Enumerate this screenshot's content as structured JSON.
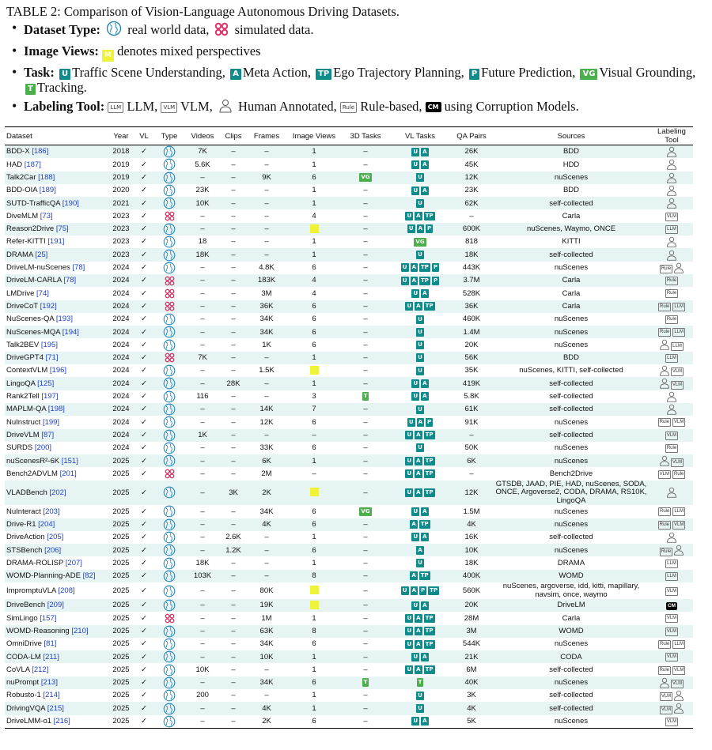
{
  "caption": "TABLE 2: Comparison of Vision-Language Autonomous Driving Datasets.",
  "legend": {
    "dataset_type": {
      "label": "Dataset Type:",
      "real": "real world data,",
      "sim": "simulated data."
    },
    "image_views": {
      "label": "Image Views:",
      "mixed_badge": "M",
      "text": "denotes mixed perspectives"
    },
    "task": {
      "label": "Task:",
      "items": [
        {
          "badge": "U",
          "text": "Traffic Scene Understanding,"
        },
        {
          "badge": "A",
          "text": "Meta Action,"
        },
        {
          "badge": "TP",
          "text": "Ego Trajectory Planning,"
        },
        {
          "badge": "P",
          "text": "Future Prediction,"
        },
        {
          "badge": "VG",
          "text": "Visual Grounding,"
        },
        {
          "badge": "T",
          "text": "Tracking."
        }
      ]
    },
    "labeling": {
      "label": "Labeling Tool:",
      "llm_badge": "LLM",
      "llm": "LLM,",
      "vlm_badge": "VLM",
      "vlm": "VLM,",
      "human": "Human Annotated,",
      "rule_badge": "Rule",
      "rule": "Rule-based,",
      "cm_badge": "CM",
      "cm": "using Corruption Models."
    }
  },
  "columns": [
    "Dataset",
    "Year",
    "VL",
    "Type",
    "Videos",
    "Clips",
    "Frames",
    "Image Views",
    "3D Tasks",
    "VL Tasks",
    "QA Pairs",
    "Sources",
    "Labeling Tool"
  ],
  "rows": [
    {
      "name": "BDD-X",
      "ref": "[186]",
      "year": "2018",
      "vl": "✓",
      "type": "real",
      "videos": "7K",
      "clips": "–",
      "frames": "–",
      "views": "1",
      "task3d": [],
      "vl_tasks": [
        "U",
        "A"
      ],
      "qa": "26K",
      "sources": "BDD",
      "tools": [
        "human"
      ]
    },
    {
      "name": "HAD",
      "ref": "[187]",
      "year": "2019",
      "vl": "✓",
      "type": "real",
      "videos": "5.6K",
      "clips": "–",
      "frames": "–",
      "views": "1",
      "task3d": [],
      "vl_tasks": [
        "U",
        "A"
      ],
      "qa": "45K",
      "sources": "HDD",
      "tools": [
        "human"
      ]
    },
    {
      "name": "Talk2Car",
      "ref": "[188]",
      "year": "2019",
      "vl": "✓",
      "type": "real",
      "videos": "–",
      "clips": "–",
      "frames": "9K",
      "views": "6",
      "task3d": [
        "VG"
      ],
      "vl_tasks": [
        "U"
      ],
      "qa": "12K",
      "sources": "nuScenes",
      "tools": [
        "human"
      ]
    },
    {
      "name": "BDD-OIA",
      "ref": "[189]",
      "year": "2020",
      "vl": "✓",
      "type": "real",
      "videos": "23K",
      "clips": "–",
      "frames": "–",
      "views": "1",
      "task3d": [],
      "vl_tasks": [
        "U",
        "A"
      ],
      "qa": "23K",
      "sources": "BDD",
      "tools": [
        "human"
      ]
    },
    {
      "name": "SUTD-TrafficQA",
      "ref": "[190]",
      "year": "2021",
      "vl": "✓",
      "type": "real",
      "videos": "10K",
      "clips": "–",
      "frames": "–",
      "views": "1",
      "task3d": [],
      "vl_tasks": [
        "U"
      ],
      "qa": "62K",
      "sources": "self-collected",
      "tools": [
        "human"
      ]
    },
    {
      "name": "DiveMLM",
      "ref": "[73]",
      "year": "2023",
      "vl": "✓",
      "type": "sim",
      "videos": "–",
      "clips": "–",
      "frames": "–",
      "views": "4",
      "task3d": [],
      "vl_tasks": [
        "U",
        "A",
        "TP"
      ],
      "qa": "–",
      "sources": "Carla",
      "tools": [
        "VLM"
      ]
    },
    {
      "name": "Reason2Drive",
      "ref": "[75]",
      "year": "2023",
      "vl": "✓",
      "type": "real",
      "videos": "–",
      "clips": "–",
      "frames": "–",
      "views": "M",
      "task3d": [],
      "vl_tasks": [
        "U",
        "A",
        "P"
      ],
      "qa": "600K",
      "sources": "nuScenes, Waymo, ONCE",
      "tools": [
        "LLM"
      ]
    },
    {
      "name": "Refer-KITTI",
      "ref": "[191]",
      "year": "2023",
      "vl": "✓",
      "type": "real",
      "videos": "18",
      "clips": "–",
      "frames": "–",
      "views": "1",
      "task3d": [],
      "vl_tasks": [
        "VG"
      ],
      "qa": "818",
      "sources": "KITTI",
      "tools": [
        "human"
      ]
    },
    {
      "name": "DRAMA",
      "ref": "[25]",
      "year": "2023",
      "vl": "✓",
      "type": "real",
      "videos": "18K",
      "clips": "–",
      "frames": "–",
      "views": "1",
      "task3d": [],
      "vl_tasks": [
        "U"
      ],
      "qa": "18K",
      "sources": "self-collected",
      "tools": [
        "human"
      ]
    },
    {
      "name": "DriveLM-nuScenes",
      "ref": "[78]",
      "year": "2024",
      "vl": "✓",
      "type": "real",
      "videos": "–",
      "clips": "–",
      "frames": "4.8K",
      "views": "6",
      "task3d": [],
      "vl_tasks": [
        "U",
        "A",
        "TP",
        "P"
      ],
      "qa": "443K",
      "sources": "nuScenes",
      "tools": [
        "Rule",
        "human"
      ]
    },
    {
      "name": "DriveLM-CARLA",
      "ref": "[78]",
      "year": "2024",
      "vl": "✓",
      "type": "sim",
      "videos": "–",
      "clips": "–",
      "frames": "183K",
      "views": "4",
      "task3d": [],
      "vl_tasks": [
        "U",
        "A",
        "TP",
        "P"
      ],
      "qa": "3.7M",
      "sources": "Carla",
      "tools": [
        "Rule"
      ]
    },
    {
      "name": "LMDrive",
      "ref": "[74]",
      "year": "2024",
      "vl": "✓",
      "type": "sim",
      "videos": "–",
      "clips": "–",
      "frames": "3M",
      "views": "4",
      "task3d": [],
      "vl_tasks": [
        "U",
        "A"
      ],
      "qa": "528K",
      "sources": "Carla",
      "tools": [
        "Rule"
      ]
    },
    {
      "name": "DriveCoT",
      "ref": "[192]",
      "year": "2024",
      "vl": "✓",
      "type": "sim",
      "videos": "–",
      "clips": "–",
      "frames": "36K",
      "views": "6",
      "task3d": [],
      "vl_tasks": [
        "U",
        "A",
        "TP"
      ],
      "qa": "36K",
      "sources": "Carla",
      "tools": [
        "Rule",
        "LLM"
      ]
    },
    {
      "name": "NuScenes-QA",
      "ref": "[193]",
      "year": "2024",
      "vl": "✓",
      "type": "real",
      "videos": "–",
      "clips": "–",
      "frames": "34K",
      "views": "6",
      "task3d": [],
      "vl_tasks": [
        "U"
      ],
      "qa": "460K",
      "sources": "nuScenes",
      "tools": [
        "Rule"
      ]
    },
    {
      "name": "NuScenes-MQA",
      "ref": "[194]",
      "year": "2024",
      "vl": "✓",
      "type": "real",
      "videos": "–",
      "clips": "–",
      "frames": "34K",
      "views": "6",
      "task3d": [],
      "vl_tasks": [
        "U"
      ],
      "qa": "1.4M",
      "sources": "nuScenes",
      "tools": [
        "Rule",
        "LLM"
      ]
    },
    {
      "name": "Talk2BEV",
      "ref": "[195]",
      "year": "2024",
      "vl": "✓",
      "type": "real",
      "videos": "–",
      "clips": "–",
      "frames": "1K",
      "views": "6",
      "task3d": [],
      "vl_tasks": [
        "U"
      ],
      "qa": "20K",
      "sources": "nuScenes",
      "tools": [
        "human",
        "LLM"
      ]
    },
    {
      "name": "DriveGPT4",
      "ref": "[71]",
      "year": "2024",
      "vl": "✓",
      "type": "sim",
      "videos": "7K",
      "clips": "–",
      "frames": "–",
      "views": "1",
      "task3d": [],
      "vl_tasks": [
        "U"
      ],
      "qa": "56K",
      "sources": "BDD",
      "tools": [
        "LLM"
      ]
    },
    {
      "name": "ContextVLM",
      "ref": "[196]",
      "year": "2024",
      "vl": "✓",
      "type": "real",
      "videos": "–",
      "clips": "–",
      "frames": "1.5K",
      "views": "M",
      "task3d": [],
      "vl_tasks": [
        "U"
      ],
      "qa": "35K",
      "sources": "nuScenes, KITTI, self-collected",
      "tools": [
        "human",
        "VLM"
      ]
    },
    {
      "name": "LingoQA",
      "ref": "[125]",
      "year": "2024",
      "vl": "✓",
      "type": "real",
      "videos": "–",
      "clips": "28K",
      "frames": "–",
      "views": "1",
      "task3d": [],
      "vl_tasks": [
        "U",
        "A"
      ],
      "qa": "419K",
      "sources": "self-collected",
      "tools": [
        "human",
        "VLM"
      ]
    },
    {
      "name": "Rank2Tell",
      "ref": "[197]",
      "year": "2024",
      "vl": "✓",
      "type": "real",
      "videos": "116",
      "clips": "–",
      "frames": "–",
      "views": "3",
      "task3d": [
        "T"
      ],
      "vl_tasks": [
        "U",
        "A"
      ],
      "qa": "5.8K",
      "sources": "self-collected",
      "tools": [
        "human"
      ]
    },
    {
      "name": "MAPLM-QA",
      "ref": "[198]",
      "year": "2024",
      "vl": "✓",
      "type": "real",
      "videos": "–",
      "clips": "–",
      "frames": "14K",
      "views": "7",
      "task3d": [],
      "vl_tasks": [
        "U"
      ],
      "qa": "61K",
      "sources": "self-collected",
      "tools": [
        "human"
      ]
    },
    {
      "name": "NuInstruct",
      "ref": "[199]",
      "year": "2024",
      "vl": "✓",
      "type": "real",
      "videos": "–",
      "clips": "–",
      "frames": "12K",
      "views": "6",
      "task3d": [],
      "vl_tasks": [
        "U",
        "A",
        "P"
      ],
      "qa": "91K",
      "sources": "nuScenes",
      "tools": [
        "Rule",
        "VLM"
      ]
    },
    {
      "name": "DriveVLM",
      "ref": "[87]",
      "year": "2024",
      "vl": "✓",
      "type": "real",
      "videos": "1K",
      "clips": "–",
      "frames": "–",
      "views": "–",
      "task3d": [],
      "vl_tasks": [
        "U",
        "A",
        "TP"
      ],
      "qa": "–",
      "sources": "self-collected",
      "tools": [
        "VLM"
      ]
    },
    {
      "name": "SURDS",
      "ref": "[200]",
      "year": "2024",
      "vl": "✓",
      "type": "real",
      "videos": "–",
      "clips": "–",
      "frames": "33K",
      "views": "6",
      "task3d": [],
      "vl_tasks": [
        "U"
      ],
      "qa": "50K",
      "sources": "nuScenes",
      "tools": [
        "Rule"
      ]
    },
    {
      "name": "nuScenesR²-6K",
      "ref": "[151]",
      "year": "2025",
      "vl": "✓",
      "type": "real",
      "videos": "–",
      "clips": "–",
      "frames": "6K",
      "views": "1",
      "task3d": [],
      "vl_tasks": [
        "U",
        "A",
        "TP"
      ],
      "qa": "6K",
      "sources": "nuScenes",
      "tools": [
        "human",
        "VLM"
      ]
    },
    {
      "name": "Bench2ADVLM",
      "ref": "[201]",
      "year": "2025",
      "vl": "✓",
      "type": "sim",
      "videos": "–",
      "clips": "–",
      "frames": "2M",
      "views": "–",
      "task3d": [],
      "vl_tasks": [
        "U",
        "A",
        "TP"
      ],
      "qa": "–",
      "sources": "Bench2Drive",
      "tools": [
        "VLM",
        "Rule"
      ]
    },
    {
      "name": "VLADBench",
      "ref": "[202]",
      "year": "2025",
      "vl": "✓",
      "type": "real",
      "videos": "–",
      "clips": "3K",
      "frames": "2K",
      "views": "M",
      "task3d": [],
      "vl_tasks": [
        "U",
        "A",
        "TP"
      ],
      "qa": "12K",
      "sources": "GTSDB, JAAD, PIE, HAD, nuScenes, SODA, ONCE, Argoverse2, CODA, DRAMA, RS10K, LingoQA",
      "tools": [
        "human"
      ]
    },
    {
      "name": "NuInteract",
      "ref": "[203]",
      "year": "2025",
      "vl": "✓",
      "type": "real",
      "videos": "–",
      "clips": "–",
      "frames": "34K",
      "views": "6",
      "task3d": [
        "VG"
      ],
      "vl_tasks": [
        "U",
        "A"
      ],
      "qa": "1.5M",
      "sources": "nuScenes",
      "tools": [
        "Rule",
        "LLM"
      ]
    },
    {
      "name": "Drive-R1",
      "ref": "[204]",
      "year": "2025",
      "vl": "✓",
      "type": "real",
      "videos": "–",
      "clips": "–",
      "frames": "4K",
      "views": "6",
      "task3d": [],
      "vl_tasks": [
        "A",
        "TP"
      ],
      "qa": "4K",
      "sources": "nuScenes",
      "tools": [
        "Rule",
        "VLM"
      ]
    },
    {
      "name": "DriveAction",
      "ref": "[205]",
      "year": "2025",
      "vl": "✓",
      "type": "real",
      "videos": "–",
      "clips": "2.6K",
      "frames": "–",
      "views": "1",
      "task3d": [],
      "vl_tasks": [
        "U",
        "A"
      ],
      "qa": "16K",
      "sources": "self-collected",
      "tools": [
        "human"
      ]
    },
    {
      "name": "STSBench",
      "ref": "[206]",
      "year": "2025",
      "vl": "✓",
      "type": "real",
      "videos": "–",
      "clips": "1.2K",
      "frames": "–",
      "views": "6",
      "task3d": [],
      "vl_tasks": [
        "A"
      ],
      "qa": "10K",
      "sources": "nuScenes",
      "tools": [
        "Rule",
        "human"
      ]
    },
    {
      "name": "DRAMA-ROLISP",
      "ref": "[207]",
      "year": "2025",
      "vl": "✓",
      "type": "real",
      "videos": "18K",
      "clips": "–",
      "frames": "–",
      "views": "1",
      "task3d": [],
      "vl_tasks": [
        "U"
      ],
      "qa": "18K",
      "sources": "DRAMA",
      "tools": [
        "LLM"
      ]
    },
    {
      "name": "WOMD-Planning-ADE",
      "ref": "[82]",
      "year": "2025",
      "vl": "✓",
      "type": "real",
      "videos": "103K",
      "clips": "–",
      "frames": "–",
      "views": "8",
      "task3d": [],
      "vl_tasks": [
        "A",
        "TP"
      ],
      "qa": "400K",
      "sources": "WOMD",
      "tools": [
        "LLM"
      ]
    },
    {
      "name": "ImpromptuVLA",
      "ref": "[208]",
      "year": "2025",
      "vl": "✓",
      "type": "real",
      "videos": "–",
      "clips": "–",
      "frames": "80K",
      "views": "M",
      "task3d": [],
      "vl_tasks": [
        "U",
        "A",
        "P",
        "TP"
      ],
      "qa": "560K",
      "sources": "nuScenes, argoverse, idd, kitti, mapillary, navsim, once, waymo",
      "tools": [
        "VLM"
      ]
    },
    {
      "name": "DriveBench",
      "ref": "[209]",
      "year": "2025",
      "vl": "✓",
      "type": "real",
      "videos": "–",
      "clips": "–",
      "frames": "19K",
      "views": "M",
      "task3d": [],
      "vl_tasks": [
        "U",
        "A"
      ],
      "qa": "20K",
      "sources": "DriveLM",
      "tools": [
        "CM"
      ]
    },
    {
      "name": "SimLingo",
      "ref": "[157]",
      "year": "2025",
      "vl": "✓",
      "type": "sim",
      "videos": "–",
      "clips": "–",
      "frames": "1M",
      "views": "1",
      "task3d": [],
      "vl_tasks": [
        "U",
        "A",
        "TP"
      ],
      "qa": "28M",
      "sources": "Carla",
      "tools": [
        "VLM"
      ]
    },
    {
      "name": "WOMD-Reasoning",
      "ref": "[210]",
      "year": "2025",
      "vl": "✓",
      "type": "real",
      "videos": "–",
      "clips": "–",
      "frames": "63K",
      "views": "8",
      "task3d": [],
      "vl_tasks": [
        "U",
        "A",
        "TP"
      ],
      "qa": "3M",
      "sources": "WOMD",
      "tools": [
        "VLM"
      ]
    },
    {
      "name": "OmniDrive",
      "ref": "[81]",
      "year": "2025",
      "vl": "✓",
      "type": "real",
      "videos": "–",
      "clips": "–",
      "frames": "34K",
      "views": "6",
      "task3d": [],
      "vl_tasks": [
        "U",
        "A",
        "TP"
      ],
      "qa": "544K",
      "sources": "nuScenes",
      "tools": [
        "Rule",
        "LLM"
      ]
    },
    {
      "name": "CODA-LM",
      "ref": "[211]",
      "year": "2025",
      "vl": "✓",
      "type": "real",
      "videos": "–",
      "clips": "–",
      "frames": "10K",
      "views": "1",
      "task3d": [],
      "vl_tasks": [
        "U",
        "A"
      ],
      "qa": "21K",
      "sources": "CODA",
      "tools": [
        "VLM"
      ]
    },
    {
      "name": "CoVLA",
      "ref": "[212]",
      "year": "2025",
      "vl": "✓",
      "type": "real",
      "videos": "10K",
      "clips": "–",
      "frames": "–",
      "views": "1",
      "task3d": [],
      "vl_tasks": [
        "U",
        "A",
        "TP"
      ],
      "qa": "6M",
      "sources": "self-collected",
      "tools": [
        "Rule",
        "VLM"
      ]
    },
    {
      "name": "nuPrompt",
      "ref": "[213]",
      "year": "2025",
      "vl": "✓",
      "type": "real",
      "videos": "–",
      "clips": "–",
      "frames": "34K",
      "views": "6",
      "task3d": [
        "T"
      ],
      "vl_tasks": [
        "T"
      ],
      "qa": "40K",
      "sources": "nuScenes",
      "tools": [
        "human",
        "VLM"
      ]
    },
    {
      "name": "Robusto-1",
      "ref": "[214]",
      "year": "2025",
      "vl": "✓",
      "type": "real",
      "videos": "200",
      "clips": "–",
      "frames": "–",
      "views": "1",
      "task3d": [],
      "vl_tasks": [
        "U"
      ],
      "qa": "3K",
      "sources": "self-collected",
      "tools": [
        "VLM",
        "human"
      ]
    },
    {
      "name": "DrivingVQA",
      "ref": "[215]",
      "year": "2025",
      "vl": "✓",
      "type": "real",
      "videos": "–",
      "clips": "–",
      "frames": "4K",
      "views": "1",
      "task3d": [],
      "vl_tasks": [
        "U"
      ],
      "qa": "4K",
      "sources": "self-collected",
      "tools": [
        "VLM",
        "human"
      ]
    },
    {
      "name": "DriveLMM-o1",
      "ref": "[216]",
      "year": "2025",
      "vl": "✓",
      "type": "real",
      "videos": "–",
      "clips": "–",
      "frames": "2K",
      "views": "6",
      "task3d": [],
      "vl_tasks": [
        "U",
        "A"
      ],
      "qa": "5K",
      "sources": "nuScenes",
      "tools": [
        "VLM"
      ]
    }
  ],
  "colors": {
    "teal": "#0f8b8b",
    "green": "#4cae4c",
    "mixed": "#eef238",
    "sim": "#e0356b",
    "real": "#1b7fb8",
    "shade": "#e7f4f4",
    "ref": "#1f3fbf"
  }
}
